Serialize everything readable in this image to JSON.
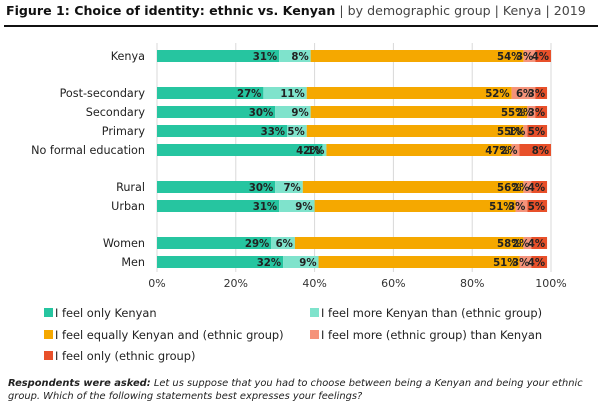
{
  "title": {
    "bold": "Figure 1: Choice of identity: ethnic vs. Kenyan",
    "rest": " | by demographic group | Kenya | 2019"
  },
  "chart_data": {
    "type": "bar",
    "orientation": "horizontal",
    "stacked": true,
    "categories": [
      "Kenya",
      "Post-secondary",
      "Secondary",
      "Primary",
      "No formal education",
      "Rural",
      "Urban",
      "Women",
      "Men"
    ],
    "series": [
      {
        "name": "I feel only Kenyan",
        "color": "#26c5a0",
        "values": [
          31,
          27,
          30,
          33,
          42,
          30,
          31,
          29,
          32
        ]
      },
      {
        "name": "I feel more Kenyan than (ethnic group)",
        "color": "#7fe3cc",
        "values": [
          8,
          11,
          9,
          5,
          1,
          7,
          9,
          6,
          9
        ]
      },
      {
        "name": "I feel equally Kenyan and (ethnic group)",
        "color": "#f5a800",
        "values": [
          54,
          52,
          55,
          55,
          47,
          56,
          51,
          58,
          51
        ]
      },
      {
        "name": "I feel more (ethnic group) than Kenyan",
        "color": "#f5937a",
        "values": [
          3,
          6,
          2,
          1,
          2,
          2,
          3,
          2,
          3
        ]
      },
      {
        "name": "I feel only (ethnic group)",
        "color": "#e8502a",
        "values": [
          4,
          3,
          3,
          5,
          8,
          4,
          5,
          4,
          4
        ]
      }
    ],
    "xlim": [
      0,
      100
    ],
    "xticks": [
      "0%",
      "20%",
      "40%",
      "60%",
      "80%",
      "100%"
    ],
    "grid": "vertical",
    "legend_position": "bottom"
  },
  "footnote": {
    "label": "Respondents were asked:",
    "text": " Let us suppose that you had to choose between being a Kenyan and being your ethnic group. Which of the following statements best expresses your feelings?"
  }
}
